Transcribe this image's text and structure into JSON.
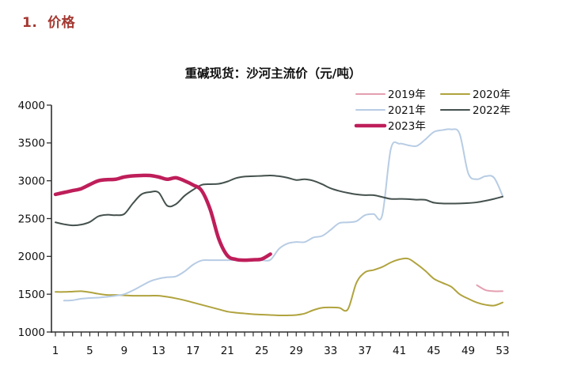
{
  "page": {
    "section_title": "1.  价格"
  },
  "chart_data": {
    "type": "line",
    "title": "重碱现货：沙河主流价（元/吨）",
    "unit": "元/吨",
    "grid": false,
    "legend_position": "top-right",
    "x_axis": {
      "min": 1,
      "max": 53,
      "minor_tick_step": 1,
      "tick_labels": [
        1,
        5,
        9,
        13,
        17,
        21,
        25,
        29,
        33,
        37,
        41,
        45,
        49,
        53
      ]
    },
    "y_axis": {
      "min": 1000,
      "max": 4000,
      "tick_step": 500,
      "tick_labels": [
        "1000",
        "1500",
        "2000",
        "2500",
        "3000",
        "3500",
        "4000"
      ]
    },
    "series": [
      {
        "name": "2019年",
        "color": "#E49FB1",
        "line_width": 2,
        "x_start": 50,
        "values": [
          1620,
          1555,
          1540,
          1540
        ]
      },
      {
        "name": "2020年",
        "color": "#B0A33E",
        "line_width": 2,
        "x_start": 1,
        "values": [
          1530,
          1530,
          1535,
          1540,
          1525,
          1505,
          1490,
          1490,
          1485,
          1480,
          1480,
          1480,
          1480,
          1465,
          1445,
          1420,
          1390,
          1360,
          1330,
          1300,
          1270,
          1255,
          1245,
          1235,
          1230,
          1225,
          1220,
          1220,
          1225,
          1245,
          1290,
          1320,
          1325,
          1320,
          1300,
          1650,
          1790,
          1820,
          1860,
          1920,
          1960,
          1970,
          1900,
          1810,
          1705,
          1650,
          1600,
          1500,
          1440,
          1390,
          1360,
          1350,
          1390
        ]
      },
      {
        "name": "2021年",
        "color": "#B7CCE4",
        "line_width": 2,
        "x_start": 2,
        "values": [
          1415,
          1420,
          1440,
          1450,
          1455,
          1465,
          1480,
          1500,
          1550,
          1610,
          1670,
          1705,
          1725,
          1735,
          1800,
          1890,
          1945,
          1950,
          1950,
          1950,
          1950,
          1950,
          1950,
          1950,
          1955,
          2100,
          2170,
          2190,
          2190,
          2250,
          2270,
          2350,
          2440,
          2450,
          2465,
          2545,
          2560,
          2545,
          3420,
          3490,
          3470,
          3460,
          3545,
          3645,
          3670,
          3680,
          3620,
          3100,
          3020,
          3060,
          3040,
          2800
        ]
      },
      {
        "name": "2022年",
        "color": "#44514E",
        "line_width": 2,
        "x_start": 1,
        "values": [
          2450,
          2425,
          2410,
          2420,
          2455,
          2530,
          2550,
          2545,
          2560,
          2700,
          2820,
          2850,
          2845,
          2670,
          2690,
          2800,
          2880,
          2945,
          2955,
          2960,
          2990,
          3035,
          3055,
          3060,
          3065,
          3070,
          3060,
          3040,
          3010,
          3020,
          3000,
          2955,
          2900,
          2865,
          2840,
          2820,
          2810,
          2810,
          2785,
          2760,
          2760,
          2758,
          2750,
          2748,
          2710,
          2700,
          2698,
          2700,
          2705,
          2715,
          2735,
          2760,
          2790
        ]
      },
      {
        "name": "2023年",
        "color": "#BE1E5A",
        "line_width": 4.5,
        "x_start": 1,
        "values": [
          2820,
          2845,
          2870,
          2895,
          2950,
          3000,
          3015,
          3020,
          3050,
          3065,
          3070,
          3070,
          3050,
          3020,
          3040,
          3000,
          2945,
          2870,
          2620,
          2230,
          2010,
          1960,
          1950,
          1955,
          1965,
          2030
        ]
      }
    ]
  }
}
